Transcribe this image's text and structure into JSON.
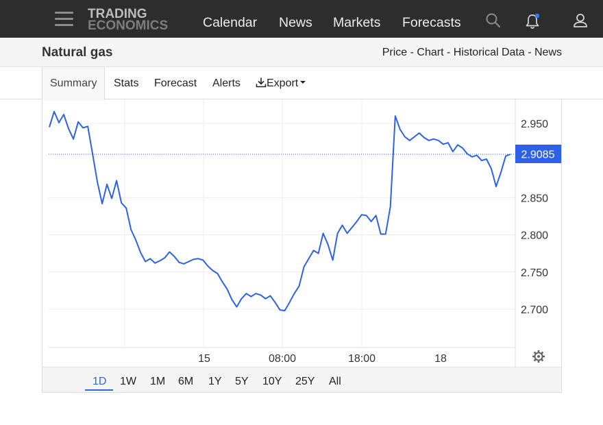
{
  "nav": {
    "logo_line1": "TRADING",
    "logo_line2": "ECONOMICS",
    "links": [
      "Calendar",
      "News",
      "Markets",
      "Forecasts"
    ],
    "icons": [
      "menu-icon",
      "search-icon",
      "bell-icon",
      "user-icon"
    ],
    "notification_dot_color": "#2f7ff0"
  },
  "subheader": {
    "title": "Natural gas",
    "breadcrumbs": [
      "Price",
      "Chart",
      "Historical Data",
      "News"
    ],
    "separator": " - "
  },
  "tabs": {
    "items": [
      "Summary",
      "Stats",
      "Forecast",
      "Alerts",
      "Export"
    ],
    "active": "Summary"
  },
  "ranges": {
    "items": [
      "1D",
      "1W",
      "1M",
      "6M",
      "1Y",
      "5Y",
      "10Y",
      "25Y",
      "All"
    ],
    "active": "1D"
  },
  "chart_data": {
    "type": "line",
    "x_tick_labels": [
      "15",
      "08:00",
      "18:00",
      "18"
    ],
    "y_ticks": [
      2.95,
      2.85,
      2.8,
      2.75,
      2.7
    ],
    "y_tick_labels": [
      "2.950",
      "2.850",
      "2.800",
      "2.750",
      "2.700"
    ],
    "ylim": [
      2.65,
      2.98
    ],
    "grid": true,
    "last_price": 2.9085,
    "last_price_label": "2.9085",
    "line_color": "#2c61e8",
    "series": [
      {
        "values": [
          2.945,
          2.966,
          2.951,
          2.962,
          2.943,
          2.929,
          2.952,
          2.944,
          2.946,
          2.909,
          2.871,
          2.842,
          2.868,
          2.849,
          2.873,
          2.843,
          2.836,
          2.807,
          2.793,
          2.776,
          2.764,
          2.768,
          2.762,
          2.765,
          2.769,
          2.777,
          2.771,
          2.763,
          2.761,
          2.764,
          2.767,
          2.768,
          2.766,
          2.758,
          2.752,
          2.748,
          2.737,
          2.727,
          2.713,
          2.703,
          2.714,
          2.721,
          2.717,
          2.721,
          2.719,
          2.714,
          2.718,
          2.709,
          2.699,
          2.698,
          2.709,
          2.721,
          2.731,
          2.757,
          2.768,
          2.779,
          2.775,
          2.802,
          2.787,
          2.766,
          2.802,
          2.813,
          2.802,
          2.81,
          2.818,
          2.827,
          2.826,
          2.818,
          2.826,
          2.801,
          2.801,
          2.838,
          2.96,
          2.942,
          2.932,
          2.927,
          2.932,
          2.937,
          2.931,
          2.927,
          2.929,
          2.927,
          2.922,
          2.924,
          2.912,
          2.921,
          2.917,
          2.909,
          2.905,
          2.907,
          2.9,
          2.902,
          2.889,
          2.865,
          2.884,
          2.906,
          2.9085
        ]
      }
    ]
  }
}
